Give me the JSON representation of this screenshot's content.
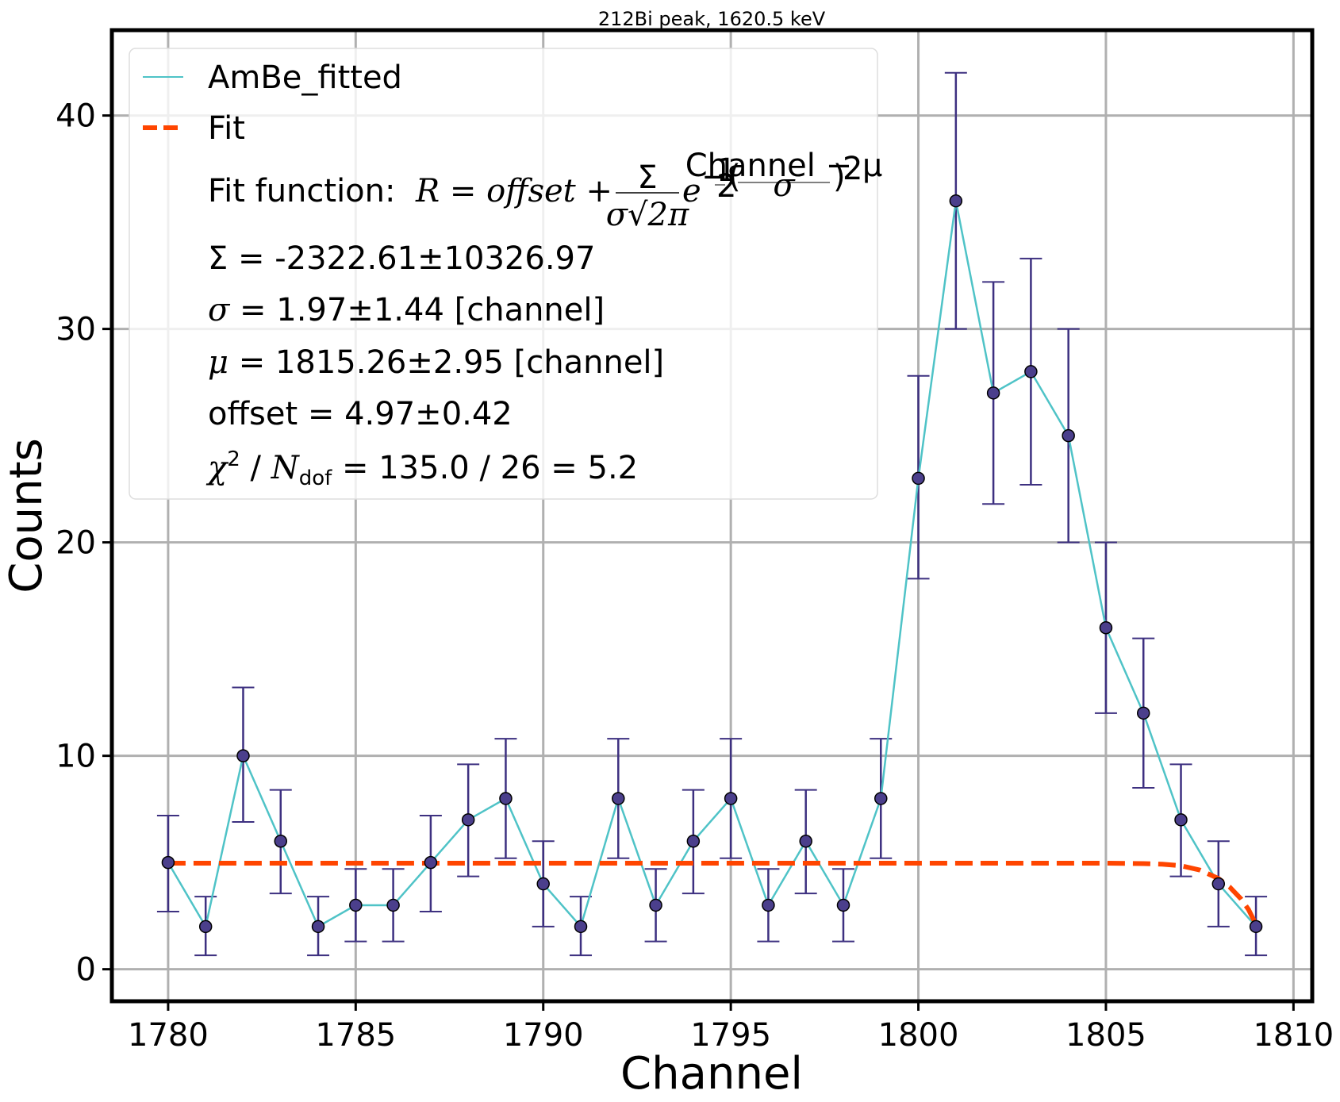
{
  "chart_data": {
    "type": "scatter",
    "title": "212Bi peak, 1620.5 keV",
    "xlabel": "Channel",
    "ylabel": "Counts",
    "xlim": [
      1778.5,
      1810.5
    ],
    "ylim": [
      -1.5,
      44
    ],
    "grid": true,
    "legend_position": "upper-left",
    "xticks": [
      1780,
      1785,
      1790,
      1795,
      1800,
      1805,
      1810
    ],
    "yticks": [
      0,
      10,
      20,
      30,
      40
    ],
    "colors": {
      "data_line": "#4fc3c7",
      "marker": "#4b3f8c",
      "errorbar": "#3d3080",
      "fit": "#ff4500"
    },
    "series": [
      {
        "name": "AmBe_fitted",
        "style": "line+errorbar markers",
        "x": [
          1780,
          1781,
          1782,
          1783,
          1784,
          1785,
          1786,
          1787,
          1788,
          1789,
          1790,
          1791,
          1792,
          1793,
          1794,
          1795,
          1796,
          1797,
          1798,
          1799,
          1800,
          1801,
          1802,
          1803,
          1804,
          1805,
          1806,
          1807,
          1808,
          1809
        ],
        "y": [
          5,
          2,
          10,
          6,
          2,
          3,
          3,
          5,
          7,
          8,
          4,
          2,
          8,
          3,
          6,
          8,
          3,
          6,
          3,
          8,
          23,
          36,
          27,
          28,
          25,
          16,
          12,
          7,
          4,
          2
        ],
        "yerr_low": [
          2.3,
          1.35,
          3.1,
          2.45,
          1.35,
          1.7,
          1.7,
          2.3,
          2.65,
          2.8,
          2.0,
          1.35,
          2.8,
          1.7,
          2.45,
          2.8,
          1.7,
          2.45,
          1.7,
          2.8,
          4.7,
          6.0,
          5.2,
          5.3,
          5.0,
          4.0,
          3.5,
          2.65,
          2.0,
          1.35
        ],
        "yerr_high": [
          2.2,
          1.4,
          3.2,
          2.4,
          1.4,
          1.7,
          1.7,
          2.2,
          2.6,
          2.8,
          2.0,
          1.4,
          2.8,
          1.7,
          2.4,
          2.8,
          1.7,
          2.4,
          1.7,
          2.8,
          4.8,
          6.0,
          5.2,
          5.3,
          5.0,
          4.0,
          3.5,
          2.6,
          2.0,
          1.4
        ]
      },
      {
        "name": "Fit",
        "style": "dashed",
        "x": [
          1780,
          1782,
          1784,
          1786,
          1788,
          1790,
          1792,
          1794,
          1796,
          1798,
          1800,
          1802,
          1804,
          1805,
          1806,
          1806.5,
          1807,
          1807.5,
          1808,
          1808.3,
          1808.6,
          1808.8,
          1809
        ],
        "y": [
          4.97,
          4.97,
          4.97,
          4.97,
          4.97,
          4.97,
          4.97,
          4.97,
          4.97,
          4.97,
          4.97,
          4.97,
          4.97,
          4.97,
          4.95,
          4.92,
          4.85,
          4.65,
          4.25,
          3.85,
          3.3,
          2.8,
          2.1
        ]
      }
    ],
    "legend": {
      "entries": [
        "AmBe_fitted",
        "Fit"
      ],
      "fit_function_label": "Fit function: ",
      "fit_function_formula": "R = offset + Σ/(σ√2π) e^(−½((Channel − μ)/σ)²)",
      "formula_parts": {
        "lhs": "R = offset + ",
        "num": "Σ",
        "den": "σ√2π",
        "e": "e",
        "exp_prefix": "−",
        "exp_half_num": "1",
        "exp_half_den": "2",
        "exp_frac_num": "Channel − μ",
        "exp_frac_den": "σ",
        "exp_power": "2"
      },
      "sigma_sum_line": "Σ = -2322.61±10326.97",
      "sigma_symbol": "σ",
      "sigma_rest": " = 1.97±1.44 [channel]",
      "mu_symbol": "μ",
      "mu_rest": " = 1815.26±2.95 [channel]",
      "offset_line": "offset = 4.97±0.42",
      "chi_symbol": "χ",
      "chi_power": "2",
      "chi_slash": " / ",
      "ndof_symbol": "N",
      "ndof_sub": "dof",
      "chi_rest": " = 135.0 / 26 = 5.2"
    }
  }
}
